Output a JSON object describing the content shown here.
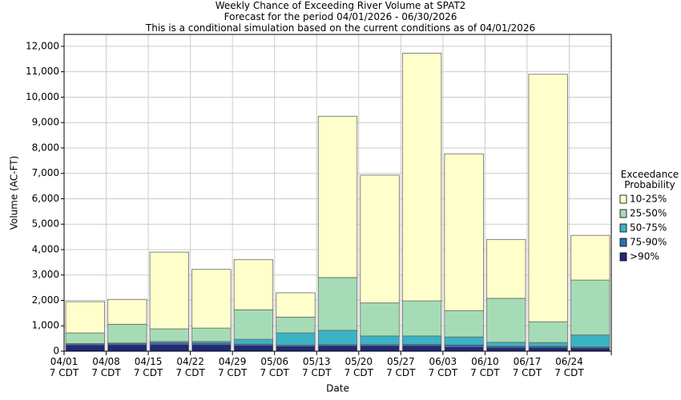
{
  "chart_data": {
    "type": "stacked_bar",
    "title": "Weekly Chance of Exceeding River Volume at SPAT2",
    "subtitle": "Forecast for the period 04/01/2026 - 06/30/2026",
    "annotation": "This is a conditional simulation based on the current conditions as of 04/01/2026",
    "x_label": "Date",
    "y_label": "Volume (AC-FT)",
    "legend_title": "Exceedance\nProbability",
    "legend": "right",
    "grid": true,
    "categories": [
      "04/01\n7 CDT",
      "04/08\n7 CDT",
      "04/15\n7 CDT",
      "04/22\n7 CDT",
      "04/29\n7 CDT",
      "05/06\n7 CDT",
      "05/13\n7 CDT",
      "05/20\n7 CDT",
      "05/27\n7 CDT",
      "06/03\n7 CDT",
      "06/10\n7 CDT",
      "06/17\n7 CDT",
      "06/24\n7 CDT"
    ],
    "series": [
      {
        "name": ">90%",
        "color": "#1f2a7a",
        "values": [
          250,
          260,
          270,
          260,
          230,
          200,
          220,
          220,
          220,
          170,
          150,
          150,
          130
        ]
      },
      {
        "name": "75-90%",
        "color": "#2c6fad",
        "values": [
          40,
          40,
          60,
          60,
          50,
          40,
          40,
          40,
          50,
          80,
          50,
          50,
          40
        ]
      },
      {
        "name": "50-75%",
        "color": "#3ab3c4",
        "values": [
          10,
          20,
          50,
          60,
          190,
          480,
          560,
          340,
          330,
          310,
          150,
          140,
          470
        ]
      },
      {
        "name": "25-50%",
        "color": "#a6dcb5",
        "values": [
          420,
          740,
          500,
          530,
          1160,
          620,
          2080,
          1300,
          1380,
          1040,
          1730,
          820,
          2160
        ]
      },
      {
        "name": "10-25%",
        "color": "#ffffcc",
        "values": [
          1230,
          980,
          3020,
          2310,
          1970,
          960,
          6350,
          5030,
          9750,
          6170,
          2320,
          9740,
          1760
        ]
      }
    ],
    "ylim": [
      0,
      12470
    ],
    "yticks": [
      0,
      {
        "value": 1000,
        "label": "1,000"
      },
      {
        "value": 2000,
        "label": "2,000"
      },
      {
        "value": 3000,
        "label": "3,000"
      },
      {
        "value": 4000,
        "label": "4,000"
      },
      {
        "value": 5000,
        "label": "5,000"
      },
      {
        "value": 6000,
        "label": "6,000"
      },
      {
        "value": 7000,
        "label": "7,000"
      },
      {
        "value": 8000,
        "label": "8,000"
      },
      {
        "value": 9000,
        "label": "9,000"
      },
      {
        "value": 10000,
        "label": "10,000"
      },
      {
        "value": 11000,
        "label": "11,000"
      },
      {
        "value": 12000,
        "label": "12,000"
      }
    ]
  }
}
